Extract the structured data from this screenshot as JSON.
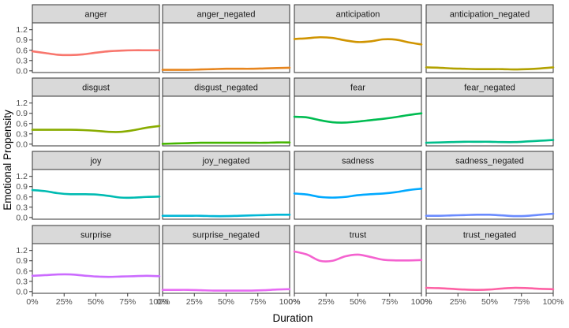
{
  "chart_data": {
    "type": "line",
    "xlabel": "Duration",
    "ylabel": "Emotional Propensity",
    "x_ticks": [
      "0%",
      "25%",
      "50%",
      "75%",
      "100%"
    ],
    "y_ticks": [
      "0.0",
      "0.3",
      "0.6",
      "0.9",
      "1.2"
    ],
    "xlim": [
      0,
      100
    ],
    "ylim": [
      -0.05,
      1.4
    ],
    "grid": false,
    "legend": "none",
    "panels": [
      {
        "name": "anger",
        "color": "#F8766D",
        "x": [
          0,
          10,
          20,
          30,
          40,
          50,
          60,
          70,
          80,
          90,
          100
        ],
        "values": [
          0.57,
          0.52,
          0.47,
          0.46,
          0.48,
          0.53,
          0.57,
          0.59,
          0.6,
          0.6,
          0.6
        ]
      },
      {
        "name": "anger_negated",
        "color": "#E7851E",
        "x": [
          0,
          10,
          20,
          30,
          40,
          50,
          60,
          70,
          80,
          90,
          100
        ],
        "values": [
          0.03,
          0.03,
          0.03,
          0.04,
          0.05,
          0.06,
          0.06,
          0.06,
          0.07,
          0.08,
          0.09
        ]
      },
      {
        "name": "anticipation",
        "color": "#D09400",
        "x": [
          0,
          10,
          20,
          30,
          40,
          50,
          60,
          70,
          80,
          90,
          100
        ],
        "values": [
          0.93,
          0.95,
          0.98,
          0.96,
          0.89,
          0.84,
          0.86,
          0.92,
          0.91,
          0.83,
          0.77
        ]
      },
      {
        "name": "anticipation_negated",
        "color": "#B2A100",
        "x": [
          0,
          10,
          20,
          30,
          40,
          50,
          60,
          70,
          80,
          90,
          100
        ],
        "values": [
          0.1,
          0.09,
          0.07,
          0.06,
          0.05,
          0.05,
          0.05,
          0.04,
          0.05,
          0.07,
          0.1
        ]
      },
      {
        "name": "disgust",
        "color": "#89AC00",
        "x": [
          0,
          10,
          20,
          30,
          40,
          50,
          60,
          70,
          80,
          90,
          100
        ],
        "values": [
          0.42,
          0.42,
          0.42,
          0.42,
          0.41,
          0.39,
          0.36,
          0.36,
          0.41,
          0.48,
          0.53
        ]
      },
      {
        "name": "disgust_negated",
        "color": "#45B500",
        "x": [
          0,
          10,
          20,
          30,
          40,
          50,
          60,
          70,
          80,
          90,
          100
        ],
        "values": [
          0.01,
          0.02,
          0.03,
          0.04,
          0.04,
          0.04,
          0.04,
          0.04,
          0.04,
          0.05,
          0.05
        ]
      },
      {
        "name": "fear",
        "color": "#00BC51",
        "x": [
          0,
          10,
          20,
          30,
          40,
          50,
          60,
          70,
          80,
          90,
          100
        ],
        "values": [
          0.8,
          0.78,
          0.7,
          0.64,
          0.63,
          0.66,
          0.7,
          0.74,
          0.79,
          0.85,
          0.9
        ]
      },
      {
        "name": "fear_negated",
        "color": "#00BE8B",
        "x": [
          0,
          10,
          20,
          30,
          40,
          50,
          60,
          70,
          80,
          90,
          100
        ],
        "values": [
          0.04,
          0.05,
          0.06,
          0.07,
          0.07,
          0.07,
          0.06,
          0.06,
          0.08,
          0.1,
          0.12
        ]
      },
      {
        "name": "joy",
        "color": "#00BBB2",
        "x": [
          0,
          10,
          20,
          30,
          40,
          50,
          60,
          70,
          80,
          90,
          100
        ],
        "values": [
          0.8,
          0.77,
          0.71,
          0.68,
          0.68,
          0.67,
          0.63,
          0.58,
          0.58,
          0.6,
          0.61
        ]
      },
      {
        "name": "joy_negated",
        "color": "#00B7D6",
        "x": [
          0,
          10,
          20,
          30,
          40,
          50,
          60,
          70,
          80,
          90,
          100
        ],
        "values": [
          0.05,
          0.05,
          0.05,
          0.05,
          0.04,
          0.04,
          0.05,
          0.06,
          0.07,
          0.08,
          0.08
        ]
      },
      {
        "name": "sadness",
        "color": "#00A9FF",
        "x": [
          0,
          10,
          20,
          30,
          40,
          50,
          60,
          70,
          80,
          90,
          100
        ],
        "values": [
          0.7,
          0.67,
          0.6,
          0.58,
          0.6,
          0.65,
          0.68,
          0.7,
          0.74,
          0.8,
          0.84
        ]
      },
      {
        "name": "sadness_negated",
        "color": "#6A8BFF",
        "x": [
          0,
          10,
          20,
          30,
          40,
          50,
          60,
          70,
          80,
          90,
          100
        ],
        "values": [
          0.05,
          0.05,
          0.06,
          0.07,
          0.08,
          0.08,
          0.06,
          0.04,
          0.05,
          0.08,
          0.11
        ]
      },
      {
        "name": "surprise",
        "color": "#CB6BFF",
        "x": [
          0,
          10,
          20,
          30,
          40,
          50,
          60,
          70,
          80,
          90,
          100
        ],
        "values": [
          0.46,
          0.48,
          0.5,
          0.5,
          0.47,
          0.44,
          0.43,
          0.44,
          0.45,
          0.46,
          0.45
        ]
      },
      {
        "name": "surprise_negated",
        "color": "#E76BF3",
        "x": [
          0,
          10,
          20,
          30,
          40,
          50,
          60,
          70,
          80,
          90,
          100
        ],
        "values": [
          0.05,
          0.05,
          0.05,
          0.04,
          0.03,
          0.03,
          0.03,
          0.03,
          0.04,
          0.06,
          0.07
        ]
      },
      {
        "name": "trust",
        "color": "#F462CF",
        "x": [
          0,
          10,
          20,
          30,
          40,
          50,
          60,
          70,
          80,
          90,
          100
        ],
        "values": [
          1.17,
          1.08,
          0.9,
          0.9,
          1.03,
          1.08,
          1.01,
          0.93,
          0.91,
          0.91,
          0.92
        ]
      },
      {
        "name": "trust_negated",
        "color": "#FD61A4",
        "x": [
          0,
          10,
          20,
          30,
          40,
          50,
          60,
          70,
          80,
          90,
          100
        ],
        "values": [
          0.11,
          0.1,
          0.08,
          0.06,
          0.05,
          0.06,
          0.09,
          0.11,
          0.1,
          0.08,
          0.07
        ]
      }
    ]
  }
}
